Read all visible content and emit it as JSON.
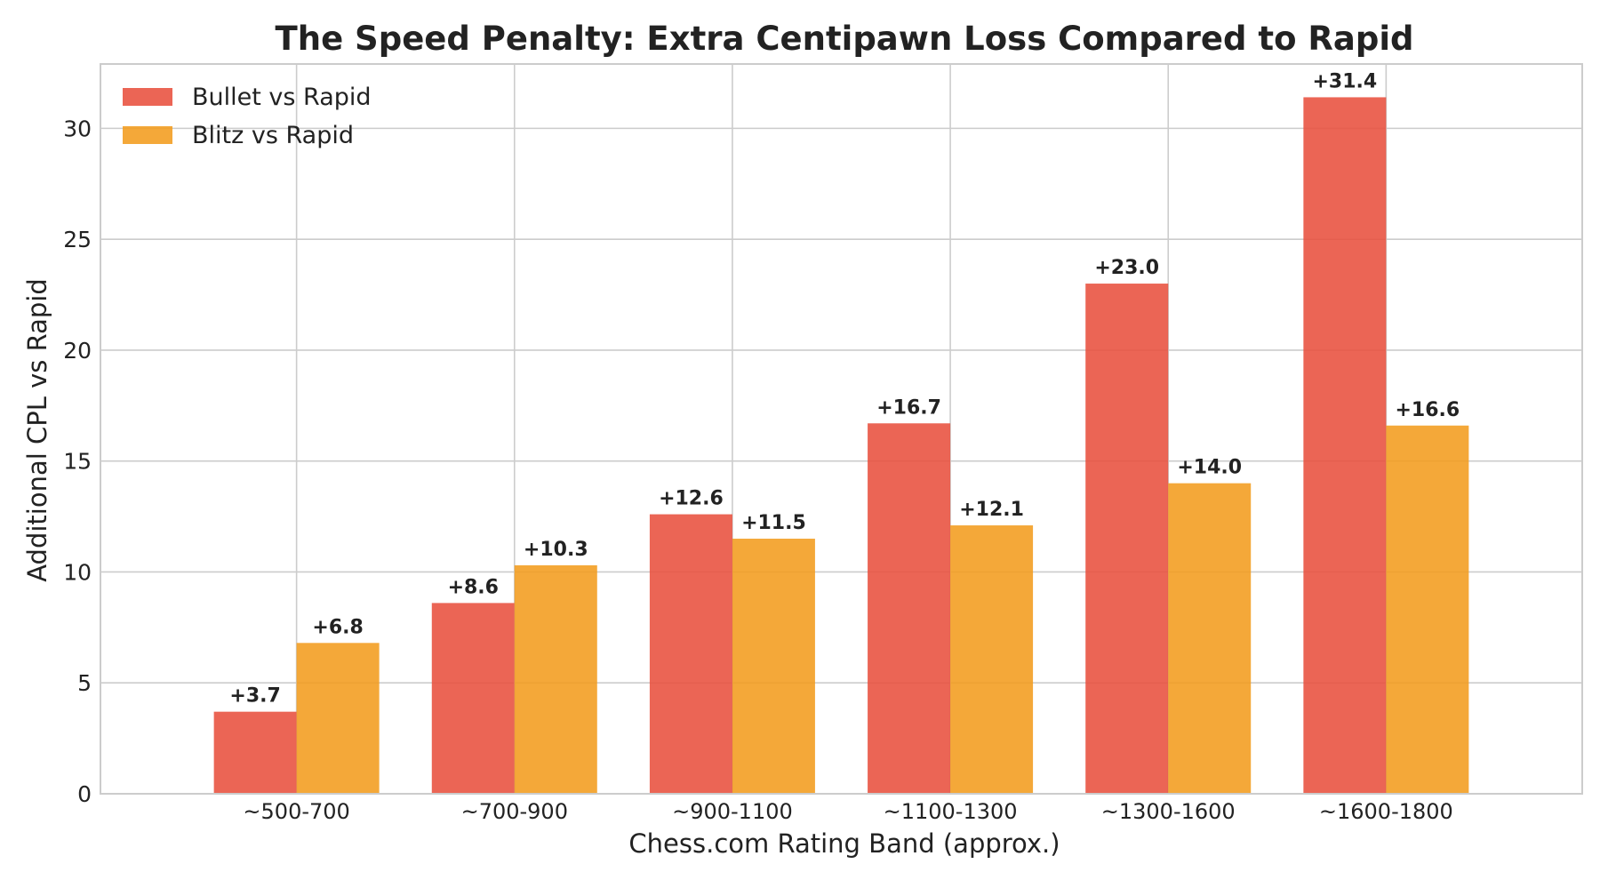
{
  "chart_data": {
    "type": "bar",
    "title": "The Speed Penalty: Extra Centipawn Loss Compared to Rapid",
    "xlabel": "Chess.com Rating Band (approx.)",
    "ylabel": "Additional CPL vs Rapid",
    "categories": [
      "~500-700",
      "~700-900",
      "~900-1100",
      "~1100-1300",
      "~1300-1600",
      "~1600-1800"
    ],
    "series": [
      {
        "name": "Bullet vs Rapid",
        "color": "#e8503e",
        "values": [
          3.7,
          8.6,
          12.6,
          16.7,
          23.0,
          31.4
        ],
        "labels": [
          "+3.7",
          "+8.6",
          "+12.6",
          "+16.7",
          "+23.0",
          "+31.4"
        ]
      },
      {
        "name": "Blitz vs Rapid",
        "color": "#f29c1e",
        "values": [
          6.8,
          10.3,
          11.5,
          12.1,
          14.0,
          16.6
        ],
        "labels": [
          "+6.8",
          "+10.3",
          "+11.5",
          "+12.1",
          "+14.0",
          "+16.6"
        ]
      }
    ],
    "ylim": [
      0,
      32.9
    ],
    "yticks": [
      0,
      5,
      10,
      15,
      20,
      25,
      30
    ],
    "ytick_labels": [
      "0",
      "5",
      "10",
      "15",
      "20",
      "25",
      "30"
    ],
    "grid": true,
    "legend_position": "top-left"
  }
}
